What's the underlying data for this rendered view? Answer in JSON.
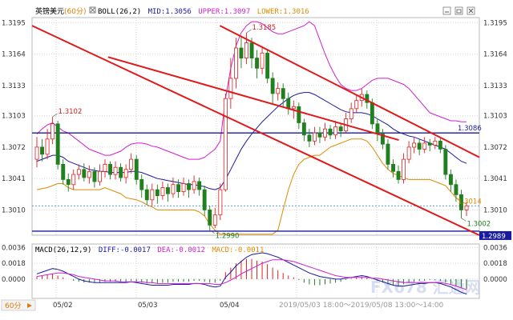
{
  "header": {
    "symbol": "英镑美元",
    "timeframe": "(60分)",
    "boll_label": "BOLL(26,2)",
    "mid_label": "MID:",
    "mid_value": "1.3056",
    "upper_label": "UPPER:",
    "upper_value": "1.3097",
    "lower_label": "LOWER:",
    "lower_value": "1.3016",
    "colors": {
      "symbol": "#000000",
      "timeframe": "#e07a00",
      "boll": "#000000",
      "mid": "#1a1aa0",
      "upper": "#d020d0",
      "lower": "#e08a00"
    }
  },
  "window_controls": [
    "minimize-icon",
    "restore-icon",
    "close-icon"
  ],
  "macd_header": {
    "label": "MACD(26,12,9)",
    "diff": "DIFF:-0.0017",
    "dea": "DEA:-0.0012",
    "macd": "MACD:-0.0011"
  },
  "footer": {
    "period_button": "60分",
    "dates": [
      "05/02",
      "05/03",
      "05/04"
    ],
    "range_text": "2019/05/03 18:00～2019/05/08 13:00～14:00",
    "watermark": "FX678 汇通网"
  },
  "chart_data": {
    "type": "candlestick",
    "price_axis": {
      "ticks": [
        "1.3195",
        "1.3164",
        "1.3133",
        "1.3103",
        "1.3072",
        "1.3041",
        "1.3010"
      ],
      "tick_values": [
        1.3195,
        1.3164,
        1.3133,
        1.3103,
        1.3072,
        1.3041,
        1.301
      ],
      "range": [
        1.2985,
        1.32
      ]
    },
    "macd_axis": {
      "ticks": [
        "0.0036",
        "0.0018",
        "0.0000"
      ],
      "tick_values": [
        0.0036,
        0.0018,
        0.0
      ],
      "range": [
        -0.0022,
        0.004
      ]
    },
    "price_tags": [
      {
        "label": "1.3086",
        "value": 1.3086,
        "color": "#1a1aa0"
      },
      {
        "label": "1.3014",
        "value": 1.3014,
        "color": "#e08a00"
      },
      {
        "label": "1.2989",
        "value": 1.2989,
        "color": "#1a1aa0"
      }
    ],
    "annotations": [
      {
        "text": "1.3185",
        "value": 1.3185,
        "color": "#d02020"
      },
      {
        "text": "1.3102",
        "value": 1.3102,
        "color": "#d02020"
      },
      {
        "text": "1.2990",
        "value": 1.299,
        "color": "#208020"
      },
      {
        "text": "1.3002",
        "value": 1.3002,
        "color": "#208020"
      }
    ],
    "horizontal_levels": [
      1.3086,
      1.2989
    ],
    "channel_lines": [
      {
        "from": [
          0,
          1.3192
        ],
        "to": [
          1,
          1.2985
        ]
      },
      {
        "from": [
          0.42,
          1.3192
        ],
        "to": [
          1,
          1.3062
        ]
      },
      {
        "from": [
          0.17,
          1.3161
        ],
        "to": [
          0.82,
          1.3079
        ]
      }
    ],
    "candles": [
      [
        1.306,
        1.3072,
        1.3082,
        1.3052
      ],
      [
        1.3072,
        1.3065,
        1.308,
        1.3058
      ],
      [
        1.3065,
        1.308,
        1.309,
        1.306
      ],
      [
        1.308,
        1.3095,
        1.3102,
        1.3075
      ],
      [
        1.3095,
        1.3055,
        1.3098,
        1.305
      ],
      [
        1.3055,
        1.304,
        1.306,
        1.3035
      ],
      [
        1.304,
        1.3035,
        1.3046,
        1.3028
      ],
      [
        1.3035,
        1.3045,
        1.305,
        1.303
      ],
      [
        1.3045,
        1.305,
        1.3055,
        1.304
      ],
      [
        1.305,
        1.3042,
        1.3056,
        1.3038
      ],
      [
        1.3042,
        1.3048,
        1.3054,
        1.3036
      ],
      [
        1.3048,
        1.3038,
        1.3052,
        1.3032
      ],
      [
        1.3038,
        1.3048,
        1.3055,
        1.3034
      ],
      [
        1.3048,
        1.3055,
        1.306,
        1.3042
      ],
      [
        1.3055,
        1.3045,
        1.3058,
        1.304
      ],
      [
        1.3045,
        1.3052,
        1.3058,
        1.304
      ],
      [
        1.3052,
        1.3042,
        1.3056,
        1.3038
      ],
      [
        1.3042,
        1.305,
        1.3055,
        1.3036
      ],
      [
        1.305,
        1.306,
        1.3066,
        1.3046
      ],
      [
        1.306,
        1.304,
        1.3064,
        1.3035
      ],
      [
        1.304,
        1.303,
        1.3045,
        1.3022
      ],
      [
        1.303,
        1.302,
        1.3035,
        1.3015
      ],
      [
        1.302,
        1.303,
        1.3036,
        1.3014
      ],
      [
        1.303,
        1.3024,
        1.3035,
        1.3016
      ],
      [
        1.3024,
        1.3032,
        1.3038,
        1.302
      ],
      [
        1.3032,
        1.3026,
        1.3036,
        1.3018
      ],
      [
        1.3026,
        1.3035,
        1.3042,
        1.3022
      ],
      [
        1.3035,
        1.3028,
        1.304,
        1.3022
      ],
      [
        1.3028,
        1.3036,
        1.3042,
        1.3024
      ],
      [
        1.3036,
        1.303,
        1.304,
        1.3022
      ],
      [
        1.303,
        1.3038,
        1.3044,
        1.3026
      ],
      [
        1.3038,
        1.303,
        1.3042,
        1.3024
      ],
      [
        1.303,
        1.301,
        1.3034,
        1.3004
      ],
      [
        1.301,
        1.2995,
        1.3014,
        1.299
      ],
      [
        1.2995,
        1.3005,
        1.3012,
        1.2992
      ],
      [
        1.3005,
        1.303,
        1.3036,
        1.3
      ],
      [
        1.303,
        1.312,
        1.3125,
        1.3028
      ],
      [
        1.312,
        1.314,
        1.316,
        1.311
      ],
      [
        1.314,
        1.317,
        1.318,
        1.313
      ],
      [
        1.317,
        1.316,
        1.3182,
        1.315
      ],
      [
        1.316,
        1.3175,
        1.3185,
        1.3154
      ],
      [
        1.3175,
        1.316,
        1.318,
        1.315
      ],
      [
        1.316,
        1.315,
        1.3168,
        1.314
      ],
      [
        1.315,
        1.3165,
        1.3172,
        1.3144
      ],
      [
        1.3165,
        1.314,
        1.3168,
        1.3135
      ],
      [
        1.314,
        1.3125,
        1.3146,
        1.3115
      ],
      [
        1.3125,
        1.313,
        1.3136,
        1.3118
      ],
      [
        1.313,
        1.312,
        1.3135,
        1.3112
      ],
      [
        1.312,
        1.311,
        1.3126,
        1.3104
      ],
      [
        1.311,
        1.3112,
        1.3118,
        1.31
      ],
      [
        1.3112,
        1.3096,
        1.3116,
        1.309
      ],
      [
        1.3096,
        1.3084,
        1.31,
        1.3078
      ],
      [
        1.3084,
        1.3078,
        1.309,
        1.3072
      ],
      [
        1.3078,
        1.3086,
        1.3092,
        1.3074
      ],
      [
        1.3086,
        1.3082,
        1.3092,
        1.3076
      ],
      [
        1.3082,
        1.309,
        1.3096,
        1.3078
      ],
      [
        1.309,
        1.3084,
        1.3094,
        1.308
      ],
      [
        1.3084,
        1.3092,
        1.3098,
        1.308
      ],
      [
        1.3092,
        1.3088,
        1.3096,
        1.3082
      ],
      [
        1.3088,
        1.31,
        1.3106,
        1.3086
      ],
      [
        1.31,
        1.311,
        1.3116,
        1.3096
      ],
      [
        1.311,
        1.3118,
        1.3124,
        1.3106
      ],
      [
        1.3118,
        1.3124,
        1.313,
        1.3112
      ],
      [
        1.3124,
        1.3116,
        1.3128,
        1.311
      ],
      [
        1.3116,
        1.3095,
        1.312,
        1.309
      ],
      [
        1.3095,
        1.3085,
        1.31,
        1.3078
      ],
      [
        1.3085,
        1.3075,
        1.309,
        1.307
      ],
      [
        1.3075,
        1.3055,
        1.308,
        1.305
      ],
      [
        1.3055,
        1.3048,
        1.306,
        1.3042
      ],
      [
        1.3048,
        1.304,
        1.3054,
        1.3036
      ],
      [
        1.304,
        1.306,
        1.3066,
        1.3036
      ],
      [
        1.306,
        1.3072,
        1.3078,
        1.3056
      ],
      [
        1.3072,
        1.3076,
        1.3082,
        1.3066
      ],
      [
        1.3076,
        1.307,
        1.308,
        1.3064
      ],
      [
        1.307,
        1.3076,
        1.3082,
        1.3066
      ],
      [
        1.3076,
        1.3074,
        1.308,
        1.3068
      ],
      [
        1.3074,
        1.3078,
        1.3082,
        1.307
      ],
      [
        1.3078,
        1.307,
        1.3082,
        1.3066
      ],
      [
        1.307,
        1.3045,
        1.3074,
        1.304
      ],
      [
        1.3045,
        1.3035,
        1.305,
        1.3028
      ],
      [
        1.3035,
        1.3025,
        1.304,
        1.3018
      ],
      [
        1.3025,
        1.301,
        1.303,
        1.3002
      ],
      [
        1.301,
        1.3014,
        1.3018,
        1.3004
      ]
    ],
    "boll_upper": [
      1.3085,
      1.309,
      1.3094,
      1.3096,
      1.3092,
      1.3088,
      1.3086,
      1.3082,
      1.3078,
      1.3074,
      1.307,
      1.3068,
      1.3066,
      1.3064,
      1.3064,
      1.3066,
      1.3068,
      1.3072,
      1.3075,
      1.3076,
      1.3076,
      1.3075,
      1.3073,
      1.3072,
      1.307,
      1.3068,
      1.3066,
      1.3064,
      1.3062,
      1.306,
      1.306,
      1.306,
      1.3062,
      1.3066,
      1.307,
      1.3078,
      1.312,
      1.315,
      1.3172,
      1.3185,
      1.3192,
      1.3196,
      1.3196,
      1.3194,
      1.319,
      1.3186,
      1.3184,
      1.3184,
      1.3186,
      1.3188,
      1.319,
      1.3192,
      1.3196,
      1.3192,
      1.3178,
      1.3164,
      1.3152,
      1.3142,
      1.3134,
      1.313,
      1.3128,
      1.3128,
      1.313,
      1.3134,
      1.3138,
      1.314,
      1.314,
      1.314,
      1.3138,
      1.3136,
      1.3134,
      1.313,
      1.3124,
      1.3118,
      1.3112,
      1.3106,
      1.3104,
      1.3102,
      1.31,
      1.3098,
      1.3098,
      1.3097,
      1.3097
    ],
    "boll_mid": [
      1.3058,
      1.306,
      1.3062,
      1.3064,
      1.3064,
      1.3062,
      1.3058,
      1.3056,
      1.3054,
      1.3052,
      1.305,
      1.3049,
      1.3048,
      1.3048,
      1.3047,
      1.3047,
      1.3047,
      1.3047,
      1.3048,
      1.3048,
      1.3047,
      1.3045,
      1.3043,
      1.3041,
      1.304,
      1.3039,
      1.3038,
      1.3037,
      1.3036,
      1.3035,
      1.3035,
      1.3034,
      1.3033,
      1.3031,
      1.303,
      1.3032,
      1.304,
      1.305,
      1.306,
      1.307,
      1.3078,
      1.3085,
      1.3091,
      1.3097,
      1.3102,
      1.3107,
      1.3112,
      1.3116,
      1.312,
      1.3123,
      1.3125,
      1.3126,
      1.3126,
      1.3124,
      1.3121,
      1.3118,
      1.3115,
      1.3112,
      1.3109,
      1.3107,
      1.3106,
      1.3106,
      1.3106,
      1.3105,
      1.3103,
      1.31,
      1.3097,
      1.3094,
      1.309,
      1.3087,
      1.3085,
      1.3083,
      1.3082,
      1.308,
      1.3078,
      1.3076,
      1.3074,
      1.3072,
      1.307,
      1.3066,
      1.3062,
      1.3058,
      1.3056
    ],
    "boll_lower": [
      1.303,
      1.3031,
      1.3032,
      1.3034,
      1.3036,
      1.3036,
      1.3032,
      1.303,
      1.303,
      1.303,
      1.303,
      1.303,
      1.303,
      1.3032,
      1.303,
      1.3028,
      1.3026,
      1.3022,
      1.3021,
      1.302,
      1.3018,
      1.3015,
      1.3013,
      1.301,
      1.301,
      1.301,
      1.301,
      1.301,
      1.301,
      1.301,
      1.301,
      1.3008,
      1.3004,
      1.2996,
      1.299,
      1.2986,
      1.2986,
      1.2986,
      1.2986,
      1.2986,
      1.2986,
      1.2986,
      1.2986,
      1.2986,
      1.2986,
      1.2986,
      1.299,
      1.301,
      1.303,
      1.3045,
      1.3055,
      1.306,
      1.3062,
      1.3064,
      1.3064,
      1.3068,
      1.3072,
      1.3074,
      1.3076,
      1.3078,
      1.308,
      1.308,
      1.308,
      1.3078,
      1.3072,
      1.3064,
      1.3056,
      1.305,
      1.3046,
      1.3044,
      1.3042,
      1.304,
      1.304,
      1.304,
      1.304,
      1.304,
      1.3038,
      1.3036,
      1.3034,
      1.3028,
      1.3022,
      1.3018,
      1.3016
    ],
    "macd_hist": [
      0.0003,
      0.0004,
      0.0005,
      0.0006,
      0.0004,
      0.0002,
      0.0,
      -0.0002,
      -0.0003,
      -0.0004,
      -0.0004,
      -0.0004,
      -0.0004,
      -0.0003,
      -0.0003,
      -0.0003,
      -0.0003,
      -0.0003,
      -0.0002,
      -0.0003,
      -0.0004,
      -0.0005,
      -0.0005,
      -0.0005,
      -0.0004,
      -0.0004,
      -0.0003,
      -0.0003,
      -0.0003,
      -0.0003,
      -0.0002,
      -0.0002,
      -0.0003,
      -0.0004,
      -0.0004,
      -0.0002,
      0.0008,
      0.0013,
      0.0018,
      0.0021,
      0.0023,
      0.0023,
      0.0021,
      0.002,
      0.0017,
      0.0013,
      0.001,
      0.0007,
      0.0004,
      0.0002,
      -0.0001,
      -0.0004,
      -0.0006,
      -0.0007,
      -0.0007,
      -0.0006,
      -0.0005,
      -0.0004,
      -0.0003,
      -0.0001,
      0.0001,
      0.0002,
      0.0003,
      0.0002,
      0.0,
      -0.0002,
      -0.0004,
      -0.0006,
      -0.0007,
      -0.0008,
      -0.0006,
      -0.0004,
      -0.0003,
      -0.0002,
      -0.0002,
      -0.0001,
      -0.0001,
      -0.0002,
      -0.0004,
      -0.0006,
      -0.0008,
      -0.001,
      -0.0011
    ],
    "macd_diff": [
      0.0006,
      0.0008,
      0.001,
      0.0012,
      0.0011,
      0.0009,
      0.0006,
      0.0003,
      0.0,
      -0.0002,
      -0.0003,
      -0.0004,
      -0.0004,
      -0.0004,
      -0.0004,
      -0.0004,
      -0.0004,
      -0.0004,
      -0.0003,
      -0.0004,
      -0.0005,
      -0.0006,
      -0.0007,
      -0.0007,
      -0.0007,
      -0.0007,
      -0.0006,
      -0.0006,
      -0.0006,
      -0.0006,
      -0.0005,
      -0.0005,
      -0.0006,
      -0.0008,
      -0.0009,
      -0.0008,
      0.0002,
      0.0008,
      0.0015,
      0.002,
      0.0025,
      0.0028,
      0.0029,
      0.003,
      0.0029,
      0.0027,
      0.0025,
      0.0022,
      0.0019,
      0.0016,
      0.0013,
      0.001,
      0.0007,
      0.0005,
      0.0003,
      0.0002,
      0.0001,
      0.0,
      0.0,
      0.0001,
      0.0002,
      0.0003,
      0.0004,
      0.0003,
      0.0001,
      -0.0001,
      -0.0003,
      -0.0005,
      -0.0007,
      -0.0008,
      -0.0008,
      -0.0007,
      -0.0006,
      -0.0005,
      -0.0005,
      -0.0004,
      -0.0004,
      -0.0005,
      -0.0007,
      -0.0009,
      -0.0012,
      -0.0015,
      -0.0017
    ],
    "macd_dea": [
      0.0003,
      0.0004,
      0.0005,
      0.0006,
      0.0007,
      0.0007,
      0.0006,
      0.0005,
      0.0003,
      0.0002,
      0.0001,
      0.0,
      -0.0001,
      -0.0002,
      -0.0002,
      -0.0002,
      -0.0003,
      -0.0003,
      -0.0003,
      -0.0003,
      -0.0003,
      -0.0004,
      -0.0004,
      -0.0005,
      -0.0005,
      -0.0005,
      -0.0005,
      -0.0005,
      -0.0005,
      -0.0005,
      -0.0005,
      -0.0005,
      -0.0005,
      -0.0005,
      -0.0006,
      -0.0006,
      -0.0004,
      -0.0001,
      0.0002,
      0.0006,
      0.0009,
      0.0012,
      0.0015,
      0.0018,
      0.002,
      0.0022,
      0.0022,
      0.0022,
      0.0021,
      0.002,
      0.0018,
      0.0016,
      0.0014,
      0.0012,
      0.001,
      0.0008,
      0.0006,
      0.0004,
      0.0003,
      0.0002,
      0.0002,
      0.0002,
      0.0002,
      0.0002,
      0.0001,
      0.0001,
      0.0,
      -0.0001,
      -0.0002,
      -0.0003,
      -0.0004,
      -0.0004,
      -0.0004,
      -0.0004,
      -0.0004,
      -0.0004,
      -0.0004,
      -0.0004,
      -0.0005,
      -0.0006,
      -0.0008,
      -0.001,
      -0.0012
    ]
  }
}
